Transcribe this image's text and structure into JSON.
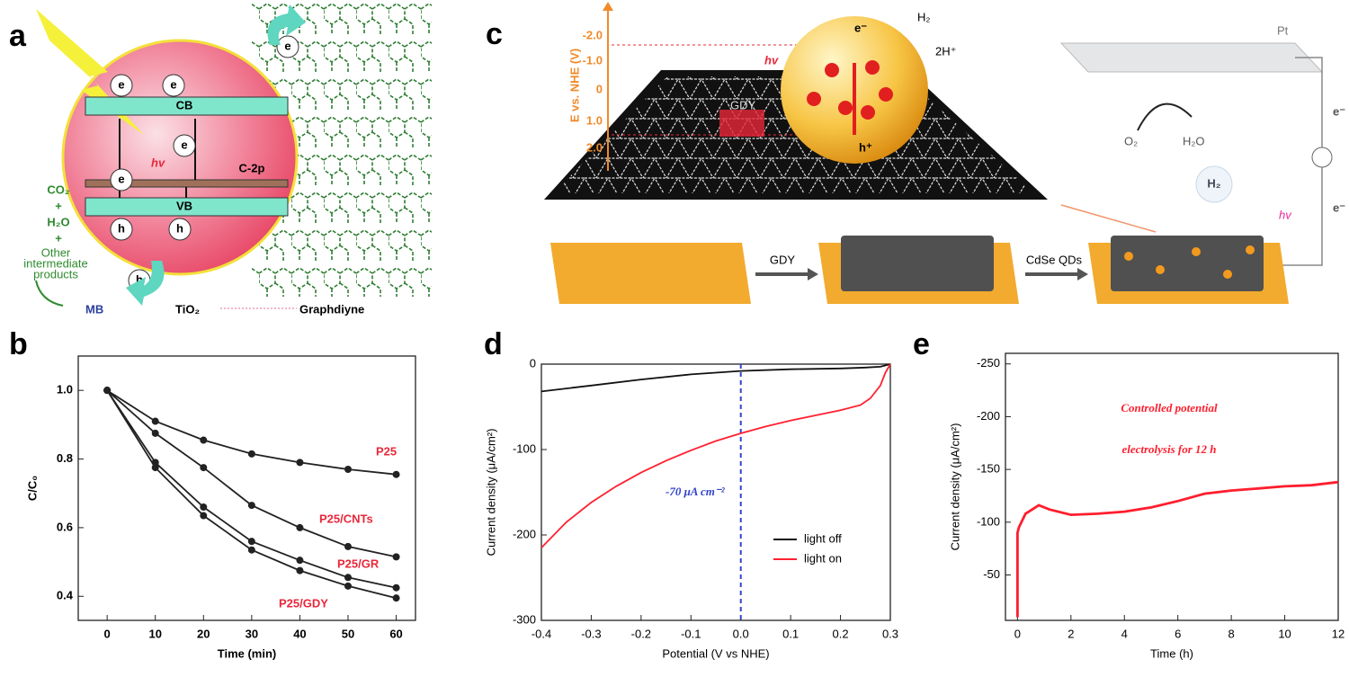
{
  "panel_labels": [
    "a",
    "b",
    "c",
    "d",
    "e"
  ],
  "diagram_a": {
    "cb": "CB",
    "vb": "VB",
    "hv": "hv",
    "c2p": "C-2p",
    "electron": "e",
    "hole": "h",
    "co2": "CO₂",
    "plus": "+",
    "h2o": "H₂O",
    "products": [
      "Other",
      "intermediate",
      "products"
    ],
    "mb": "MB",
    "tio2": "TiO₂",
    "graphdiyne": "Graphdiyne"
  },
  "diagram_c": {
    "axis_label": "E vs. NHE (V)",
    "potentials": [
      "-2.0",
      "-1.0",
      "0",
      "1.0",
      "2.0"
    ],
    "hv": "hv",
    "gdy": "GDY",
    "electron": "e⁻",
    "h2": "H₂",
    "protons": "2H⁺",
    "hole": "h⁺",
    "pt": "Pt",
    "o2": "O₂",
    "h2o": "H₂O",
    "step1": "GDY",
    "step2": "CdSe QDs"
  },
  "chart_data": [
    {
      "type": "line",
      "x_label": "Time (min)",
      "y_label": "C/C₀",
      "x": [
        0,
        10,
        20,
        30,
        40,
        50,
        60
      ],
      "xlim": [
        -6,
        64
      ],
      "xticks": [
        0,
        10,
        20,
        30,
        40,
        50,
        60
      ],
      "ylim": [
        0.33,
        1.1
      ],
      "yticks": [
        0.4,
        0.6,
        0.8,
        {
          "value": 1,
          "label": "1.0"
        }
      ],
      "markers": true,
      "label_color": "#e8273a",
      "series": [
        {
          "name": "P25",
          "color": "#222222",
          "values": [
            1,
            0.91,
            0.855,
            0.815,
            0.79,
            0.77,
            0.755
          ]
        },
        {
          "name": "P25/CNTs",
          "color": "#222222",
          "values": [
            1,
            0.875,
            0.775,
            0.665,
            0.6,
            0.545,
            0.515
          ]
        },
        {
          "name": "P25/GR",
          "color": "#222222",
          "values": [
            1,
            0.79,
            0.66,
            0.56,
            0.505,
            0.455,
            0.425
          ]
        },
        {
          "name": "P25/GDY",
          "color": "#222222",
          "values": [
            1,
            0.775,
            0.635,
            0.535,
            0.475,
            0.43,
            0.395
          ]
        }
      ]
    },
    {
      "type": "line",
      "x_label": "Potential (V vs NHE)",
      "y_label": "Current density (μA/cm²)",
      "xlim": [
        -0.4,
        0.3
      ],
      "xticks": [
        -0.4,
        -0.3,
        -0.2,
        -0.1,
        {
          "value": 0,
          "label": "0.0"
        },
        0.1,
        0.2,
        0.3
      ],
      "ylim": [
        -300,
        0
      ],
      "yticks": [
        0,
        -100,
        -200,
        -300
      ],
      "reference_x": 0,
      "annotation": "-70 μA cm⁻²",
      "legend": "lower right",
      "series": [
        {
          "name": "light off",
          "color": "#111111",
          "x": [
            -0.4,
            -0.3,
            -0.2,
            -0.1,
            0,
            0.1,
            0.2,
            0.25,
            0.28,
            0.3
          ],
          "values": [
            -32,
            -25,
            -18,
            -12,
            -8,
            -6,
            -5,
            -4,
            -3,
            0
          ]
        },
        {
          "name": "light on",
          "color": "#ff2030",
          "x": [
            -0.4,
            -0.35,
            -0.3,
            -0.25,
            -0.2,
            -0.15,
            -0.1,
            -0.05,
            0,
            0.05,
            0.1,
            0.15,
            0.2,
            0.24,
            0.26,
            0.28,
            0.29,
            0.3
          ],
          "values": [
            -215,
            -185,
            -162,
            -143,
            -127,
            -113,
            -101,
            -90,
            -81,
            -73,
            -66,
            -60,
            -54,
            -48,
            -40,
            -25,
            -10,
            0
          ]
        }
      ]
    },
    {
      "type": "line",
      "x_label": "Time (h)",
      "y_label": "Current density (μA/cm²)",
      "xlim": [
        -0.45,
        12
      ],
      "xticks": [
        0,
        2,
        4,
        6,
        8,
        10,
        12
      ],
      "ylim": [
        -7,
        -260
      ],
      "yticks": [
        -250,
        -200,
        -150,
        -100,
        -50
      ],
      "annotation": [
        "Controlled potential",
        "electrolysis for 12 h"
      ],
      "series": [
        {
          "name": "current",
          "color": "#ff1e2d",
          "x": [
            0,
            0,
            0.05,
            0.3,
            0.8,
            1.2,
            2,
            3,
            4,
            5,
            6,
            7,
            8,
            9,
            10,
            11,
            12
          ],
          "values": [
            -10,
            -90,
            -95,
            -108,
            -116,
            -112,
            -107,
            -108,
            -110,
            -114,
            -120,
            -127,
            -130,
            -132,
            -134,
            -135,
            -138
          ]
        }
      ]
    }
  ]
}
